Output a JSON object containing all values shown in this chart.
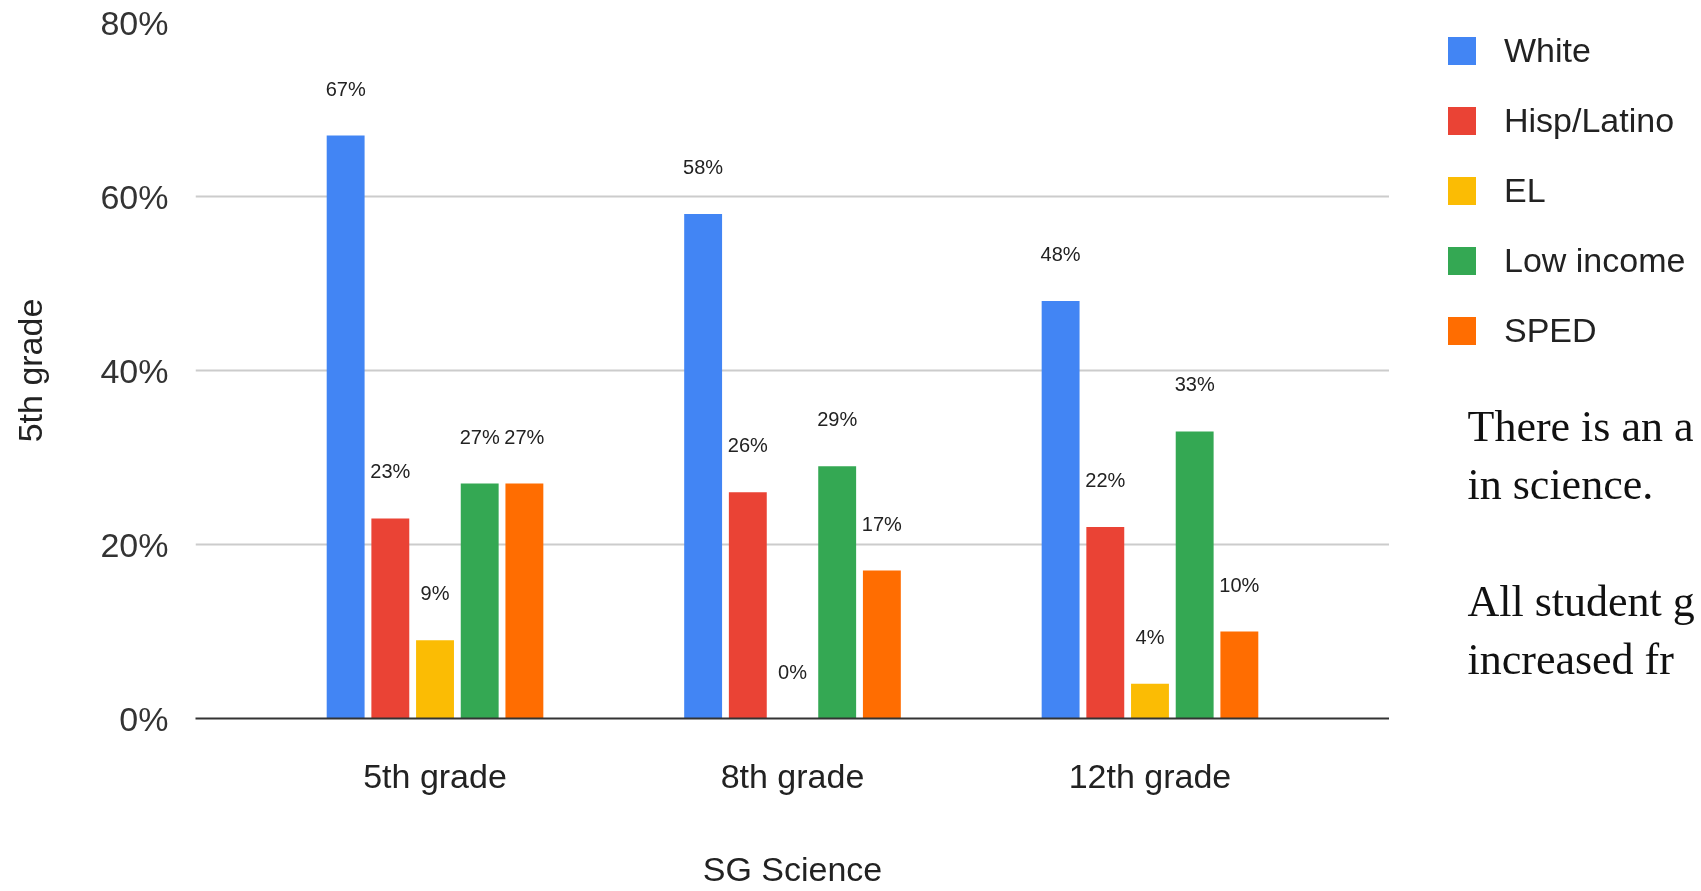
{
  "chart_data": {
    "type": "bar",
    "xlabel": "SG Science",
    "ylabel": "5th grade",
    "categories": [
      "5th grade",
      "8th grade",
      "12th grade"
    ],
    "series": [
      {
        "name": "White",
        "color": "#4285f4",
        "values": [
          67,
          58,
          48
        ],
        "value_labels": [
          "67%",
          "58%",
          "48%"
        ]
      },
      {
        "name": "Hisp/Latino",
        "color": "#ea4335",
        "values": [
          23,
          26,
          22
        ],
        "value_labels": [
          "23%",
          "26%",
          "22%"
        ]
      },
      {
        "name": "EL",
        "color": "#fbbc04",
        "values": [
          9,
          0,
          4
        ],
        "value_labels": [
          "9%",
          "0%",
          "4%"
        ]
      },
      {
        "name": "Low income",
        "color": "#34a853",
        "values": [
          27,
          29,
          33
        ],
        "value_labels": [
          "27%",
          "29%",
          "33%"
        ]
      },
      {
        "name": "SPED",
        "color": "#ff6d01",
        "values": [
          27,
          17,
          10
        ],
        "value_labels": [
          "27%",
          "17%",
          "10%"
        ]
      }
    ],
    "ylim": [
      0,
      80
    ],
    "yticks": [
      {
        "value": 0,
        "label": "0%"
      },
      {
        "value": 20,
        "label": "20%"
      },
      {
        "value": 40,
        "label": "40%"
      },
      {
        "value": 60,
        "label": "60%"
      },
      {
        "value": 80,
        "label": "80%"
      }
    ],
    "grid": "y",
    "legend": "top right",
    "annotations": [
      "There is an a\nin science.",
      "All student g\nincreased fr"
    ]
  }
}
